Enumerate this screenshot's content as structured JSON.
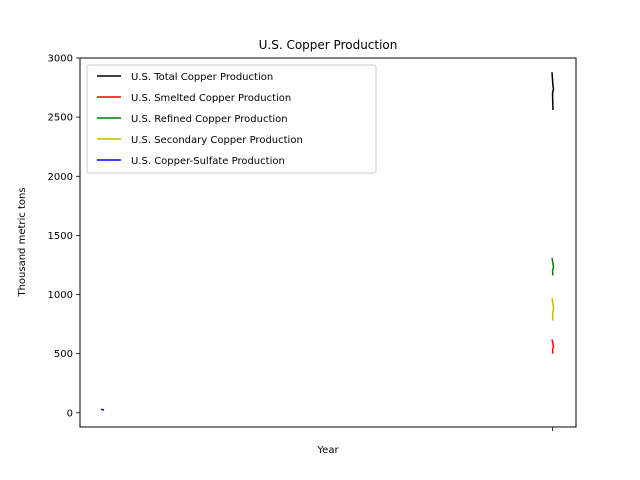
{
  "chart_data": {
    "type": "line",
    "title": "U.S. Copper Production",
    "xlabel": "Year",
    "ylabel": "Thousand metric tons",
    "ylim": [
      -120,
      3000
    ],
    "yticks": [
      0,
      500,
      1000,
      1500,
      2000,
      2500,
      3000
    ],
    "grid": false,
    "legend_position": "top-left",
    "series": [
      {
        "name": "U.S. Total Copper Production",
        "color": "#000000",
        "position": "right",
        "values": [
          2880,
          2760,
          2740,
          2700,
          2560
        ]
      },
      {
        "name": "U.S. Smelted Copper Production",
        "color": "#ff0000",
        "position": "right",
        "values": [
          620,
          580,
          560,
          530,
          500
        ]
      },
      {
        "name": "U.S. Refined Copper Production",
        "color": "#008000",
        "position": "right",
        "values": [
          1310,
          1260,
          1230,
          1200,
          1160
        ]
      },
      {
        "name": "U.S. Secondary Copper Production",
        "color": "#bfbf00",
        "position": "right",
        "values": [
          970,
          920,
          880,
          830,
          780
        ]
      },
      {
        "name": "U.S. Copper-Sulfate Production",
        "color": "#0000ff",
        "position": "left",
        "values": [
          30,
          28,
          26,
          24,
          22
        ]
      }
    ]
  }
}
